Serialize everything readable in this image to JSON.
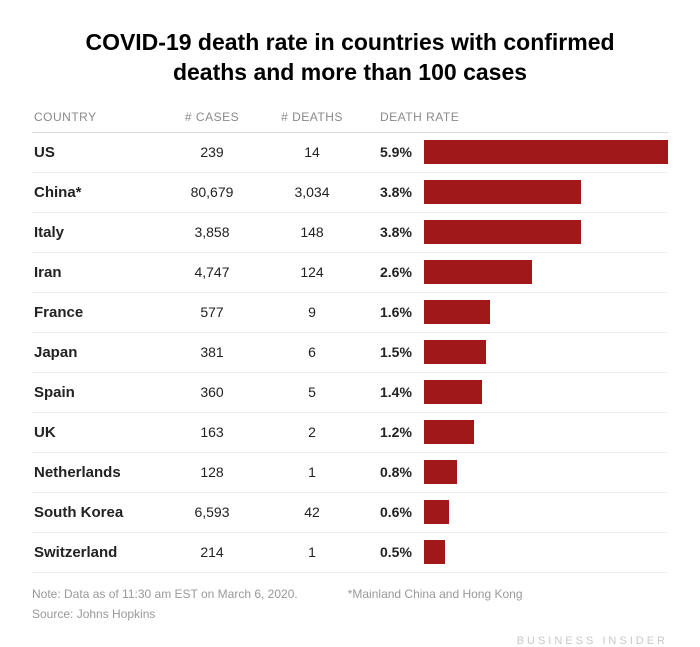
{
  "title": "COVID-19 death rate in countries with confirmed deaths and more than 100 cases",
  "columns": {
    "country": "COUNTRY",
    "cases": "# CASES",
    "deaths": "# DEATHS",
    "rate": "DEATH RATE"
  },
  "bar_color": "#a01818",
  "max_rate": 5.9,
  "rows": [
    {
      "country": "US",
      "cases": "239",
      "deaths": "14",
      "rate_label": "5.9%",
      "rate_value": 5.9
    },
    {
      "country": "China*",
      "cases": "80,679",
      "deaths": "3,034",
      "rate_label": "3.8%",
      "rate_value": 3.8
    },
    {
      "country": "Italy",
      "cases": "3,858",
      "deaths": "148",
      "rate_label": "3.8%",
      "rate_value": 3.8
    },
    {
      "country": "Iran",
      "cases": "4,747",
      "deaths": "124",
      "rate_label": "2.6%",
      "rate_value": 2.6
    },
    {
      "country": "France",
      "cases": "577",
      "deaths": "9",
      "rate_label": "1.6%",
      "rate_value": 1.6
    },
    {
      "country": "Japan",
      "cases": "381",
      "deaths": "6",
      "rate_label": "1.5%",
      "rate_value": 1.5
    },
    {
      "country": "Spain",
      "cases": "360",
      "deaths": "5",
      "rate_label": "1.4%",
      "rate_value": 1.4
    },
    {
      "country": "UK",
      "cases": "163",
      "deaths": "2",
      "rate_label": "1.2%",
      "rate_value": 1.2
    },
    {
      "country": "Netherlands",
      "cases": "128",
      "deaths": "1",
      "rate_label": "0.8%",
      "rate_value": 0.8
    },
    {
      "country": "South Korea",
      "cases": "6,593",
      "deaths": "42",
      "rate_label": "0.6%",
      "rate_value": 0.6
    },
    {
      "country": "Switzerland",
      "cases": "214",
      "deaths": "1",
      "rate_label": "0.5%",
      "rate_value": 0.5
    }
  ],
  "note1": "Note: Data as of 11:30 am EST on March 6, 2020.",
  "note2": "*Mainland China and Hong Kong",
  "source": "Source: Johns Hopkins",
  "brand": "BUSINESS INSIDER"
}
